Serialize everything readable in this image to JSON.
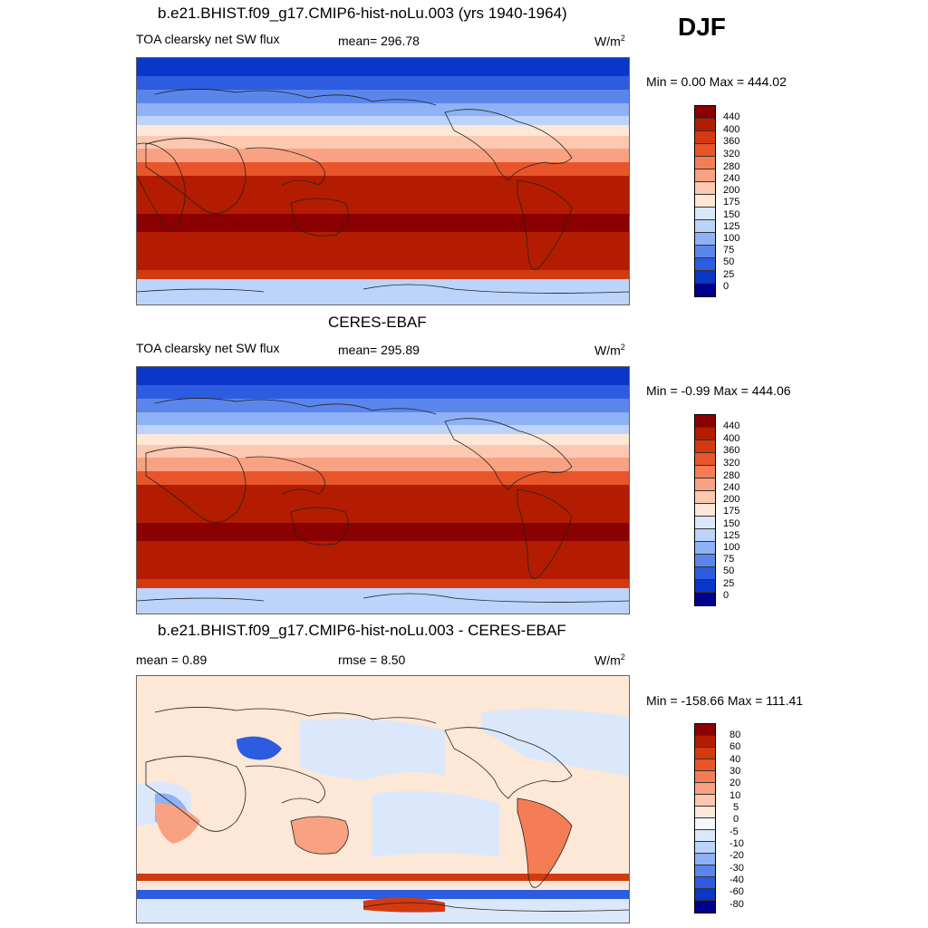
{
  "season": "DJF",
  "panels": [
    {
      "title": "b.e21.BHIST.f09_g17.CMIP6-hist-noLu.003 (yrs 1940-1964)",
      "variable": "TOA clearsky net SW flux",
      "stat1": "mean= 296.78",
      "units_base": "W/m",
      "units_exp": "2",
      "minmax": "Min =   0.00 Max = 444.02",
      "levels": [
        "440",
        "400",
        "360",
        "320",
        "280",
        "240",
        "200",
        "175",
        "150",
        "125",
        "100",
        "75",
        "50",
        "25",
        "0"
      ],
      "colors": [
        "#8b0000",
        "#b31c00",
        "#d33a0f",
        "#e8552a",
        "#f47d55",
        "#f8a283",
        "#fcc8b0",
        "#fde7d6",
        "#dbe8fb",
        "#bcd3fa",
        "#8fb1f5",
        "#5a86ec",
        "#2d5ce0",
        "#0a36c9",
        "#00008f"
      ]
    },
    {
      "title": "CERES-EBAF",
      "variable": "TOA clearsky net SW flux",
      "stat1": "mean= 295.89",
      "units_base": "W/m",
      "units_exp": "2",
      "minmax": "Min =  -0.99 Max = 444.06",
      "levels": [
        "440",
        "400",
        "360",
        "320",
        "280",
        "240",
        "200",
        "175",
        "150",
        "125",
        "100",
        "75",
        "50",
        "25",
        "0"
      ],
      "colors": [
        "#8b0000",
        "#b31c00",
        "#d33a0f",
        "#e8552a",
        "#f47d55",
        "#f8a283",
        "#fcc8b0",
        "#fde7d6",
        "#dbe8fb",
        "#bcd3fa",
        "#8fb1f5",
        "#5a86ec",
        "#2d5ce0",
        "#0a36c9",
        "#00008f"
      ]
    },
    {
      "title": "b.e21.BHIST.f09_g17.CMIP6-hist-noLu.003 - CERES-EBAF",
      "stat1": "mean =   0.89",
      "stat2": "rmse =   8.50",
      "units_base": "W/m",
      "units_exp": "2",
      "minmax": "Min = -158.66 Max = 111.41",
      "levels": [
        "80",
        "60",
        "40",
        "30",
        "20",
        "10",
        "5",
        "0",
        "-5",
        "-10",
        "-20",
        "-30",
        "-40",
        "-60",
        "-80"
      ],
      "colors": [
        "#8b0000",
        "#b31c00",
        "#d33a0f",
        "#e8552a",
        "#f47d55",
        "#f8a283",
        "#fcc8b0",
        "#fde7d6",
        "#f4f7fd",
        "#dbe8fb",
        "#bcd3fa",
        "#8fb1f5",
        "#5a86ec",
        "#2d5ce0",
        "#0a36c9",
        "#00008f"
      ]
    }
  ]
}
